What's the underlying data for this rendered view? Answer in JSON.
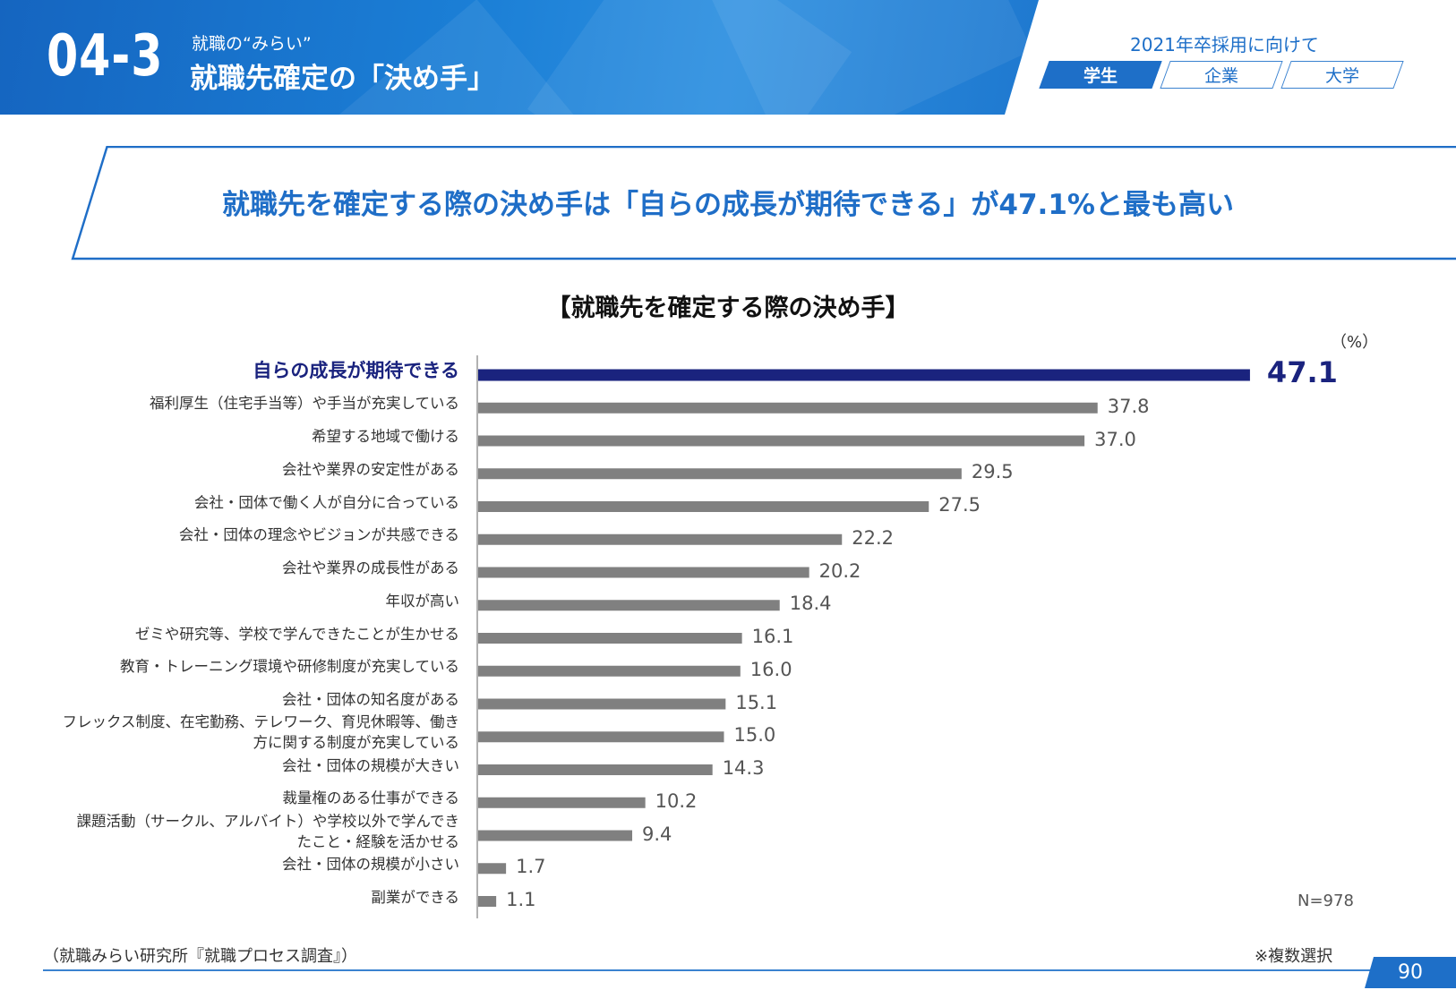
{
  "header": {
    "section_number": "04-3",
    "section_subtitle": "就職の“みらい”",
    "section_title": "就職先確定の「決め手」",
    "year_label": "2021年卒採用に向けて",
    "tabs": [
      {
        "label": "学生",
        "active": true
      },
      {
        "label": "企業",
        "active": false
      },
      {
        "label": "大学",
        "active": false
      }
    ]
  },
  "headline": "就職先を確定する際の決め手は「自らの成長が期待できる」が47.1%と最も高い",
  "chart_data": {
    "type": "bar",
    "orientation": "horizontal",
    "title": "【就職先を確定する際の決め手】",
    "unit": "（%）",
    "n_label": "N=978",
    "xlim": [
      0,
      50
    ],
    "grid": false,
    "categories": [
      [
        "自らの成長が期待できる"
      ],
      [
        "福利厚生（住宅手当等）や手当が充実している"
      ],
      [
        "希望する地域で働ける"
      ],
      [
        "会社や業界の安定性がある"
      ],
      [
        "会社・団体で働く人が自分に合っている"
      ],
      [
        "会社・団体の理念やビジョンが共感できる"
      ],
      [
        "会社や業界の成長性がある"
      ],
      [
        "年収が高い"
      ],
      [
        "ゼミや研究等、学校で学んできたことが生かせる"
      ],
      [
        "教育・トレーニング環境や研修制度が充実している"
      ],
      [
        "会社・団体の知名度がある"
      ],
      [
        "フレックス制度、在宅勤務、テレワーク、育児休暇等、働き",
        "方に関する制度が充実している"
      ],
      [
        "会社・団体の規模が大きい"
      ],
      [
        "裁量権のある仕事ができる"
      ],
      [
        "課題活動（サークル、アルバイト）や学校以外で学んでき",
        "たこと・経験を活かせる"
      ],
      [
        "会社・団体の規模が小さい"
      ],
      [
        "副業ができる"
      ]
    ],
    "values": [
      47.1,
      37.8,
      37.0,
      29.5,
      27.5,
      22.2,
      20.2,
      18.4,
      16.1,
      16.0,
      15.1,
      15.0,
      14.3,
      10.2,
      9.4,
      1.7,
      1.1
    ],
    "value_labels": [
      "47.1",
      "37.8",
      "37.0",
      "29.5",
      "27.5",
      "22.2",
      "20.2",
      "18.4",
      "16.1",
      "16.0",
      "15.1",
      "15.0",
      "14.3",
      "10.2",
      "9.4",
      "1.7",
      "1.1"
    ],
    "highlight_index": 0,
    "colors": {
      "highlight": "#1a237e",
      "default": "#808080",
      "axis": "#999999"
    }
  },
  "footer": {
    "source": "（就職みらい研究所『就職プロセス調査』）",
    "note": "※複数選択",
    "page_number": "90"
  },
  "colors": {
    "brand": "#1e6fc8",
    "headline": "#1f6ec7"
  }
}
